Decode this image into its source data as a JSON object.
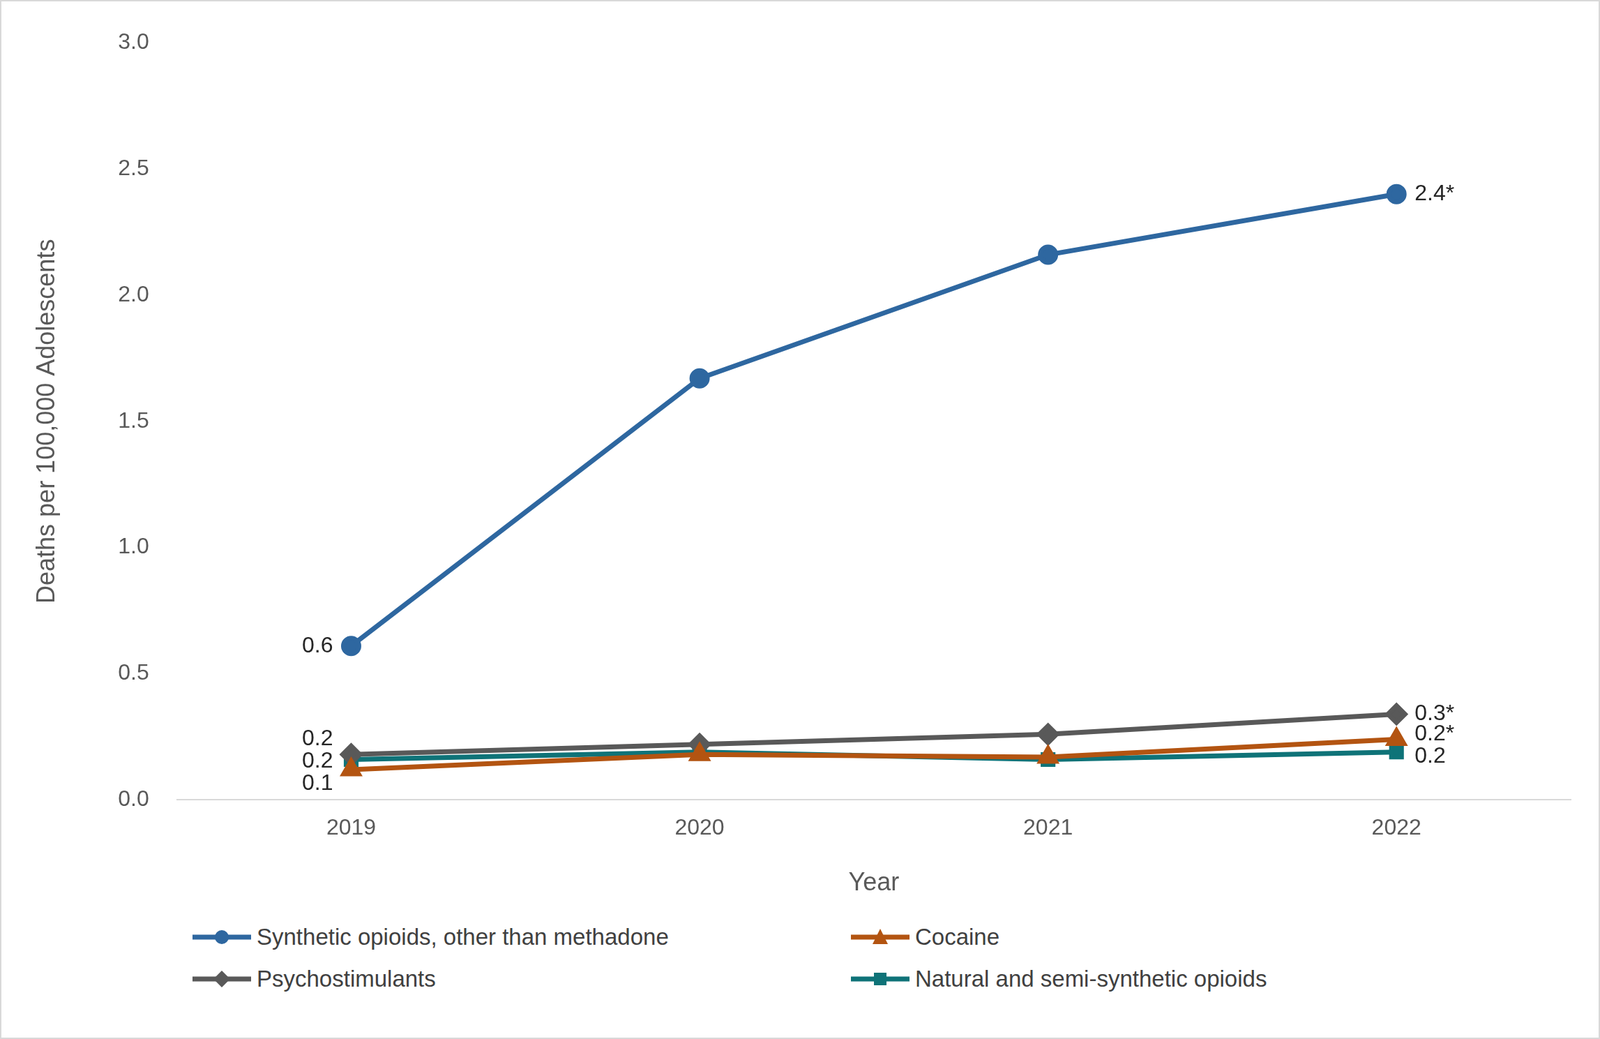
{
  "chart_data": {
    "type": "line",
    "x_label": "Year",
    "y_label": "Deaths per 100,000 Adolescents",
    "categories": [
      "2019",
      "2020",
      "2021",
      "2022"
    ],
    "series": [
      {
        "name": "Synthetic opioids, other than methadone",
        "color": "#2e67a0",
        "marker": "circle",
        "values": [
          0.61,
          1.67,
          2.16,
          2.4
        ],
        "value_labels": [
          "0.6",
          null,
          null,
          "2.4*"
        ]
      },
      {
        "name": "Cocaine",
        "color": "#b35411",
        "marker": "triangle",
        "values": [
          0.12,
          0.18,
          0.17,
          0.24
        ],
        "value_labels": [
          "0.1",
          null,
          null,
          "0.2*"
        ]
      },
      {
        "name": "Psychostimulants",
        "color": "#595959",
        "marker": "diamond",
        "values": [
          0.18,
          0.22,
          0.26,
          0.34
        ],
        "value_labels": [
          "0.2",
          null,
          null,
          "0.3*"
        ]
      },
      {
        "name": "Natural and semi-synthetic opioids",
        "color": "#0f7378",
        "marker": "square",
        "values": [
          0.16,
          0.19,
          0.16,
          0.19
        ],
        "value_labels": [
          "0.2",
          null,
          null,
          "0.2"
        ]
      }
    ],
    "ylim": [
      0,
      3
    ],
    "yticks": [
      {
        "value": 0,
        "label": "0.0"
      },
      0.5,
      {
        "value": 1,
        "label": "1.0"
      },
      1.5,
      {
        "value": 2,
        "label": "2.0"
      },
      2.5,
      {
        "value": 3,
        "label": "3.0"
      }
    ],
    "grid": false,
    "legend": "bottom",
    "data_labels": true
  }
}
